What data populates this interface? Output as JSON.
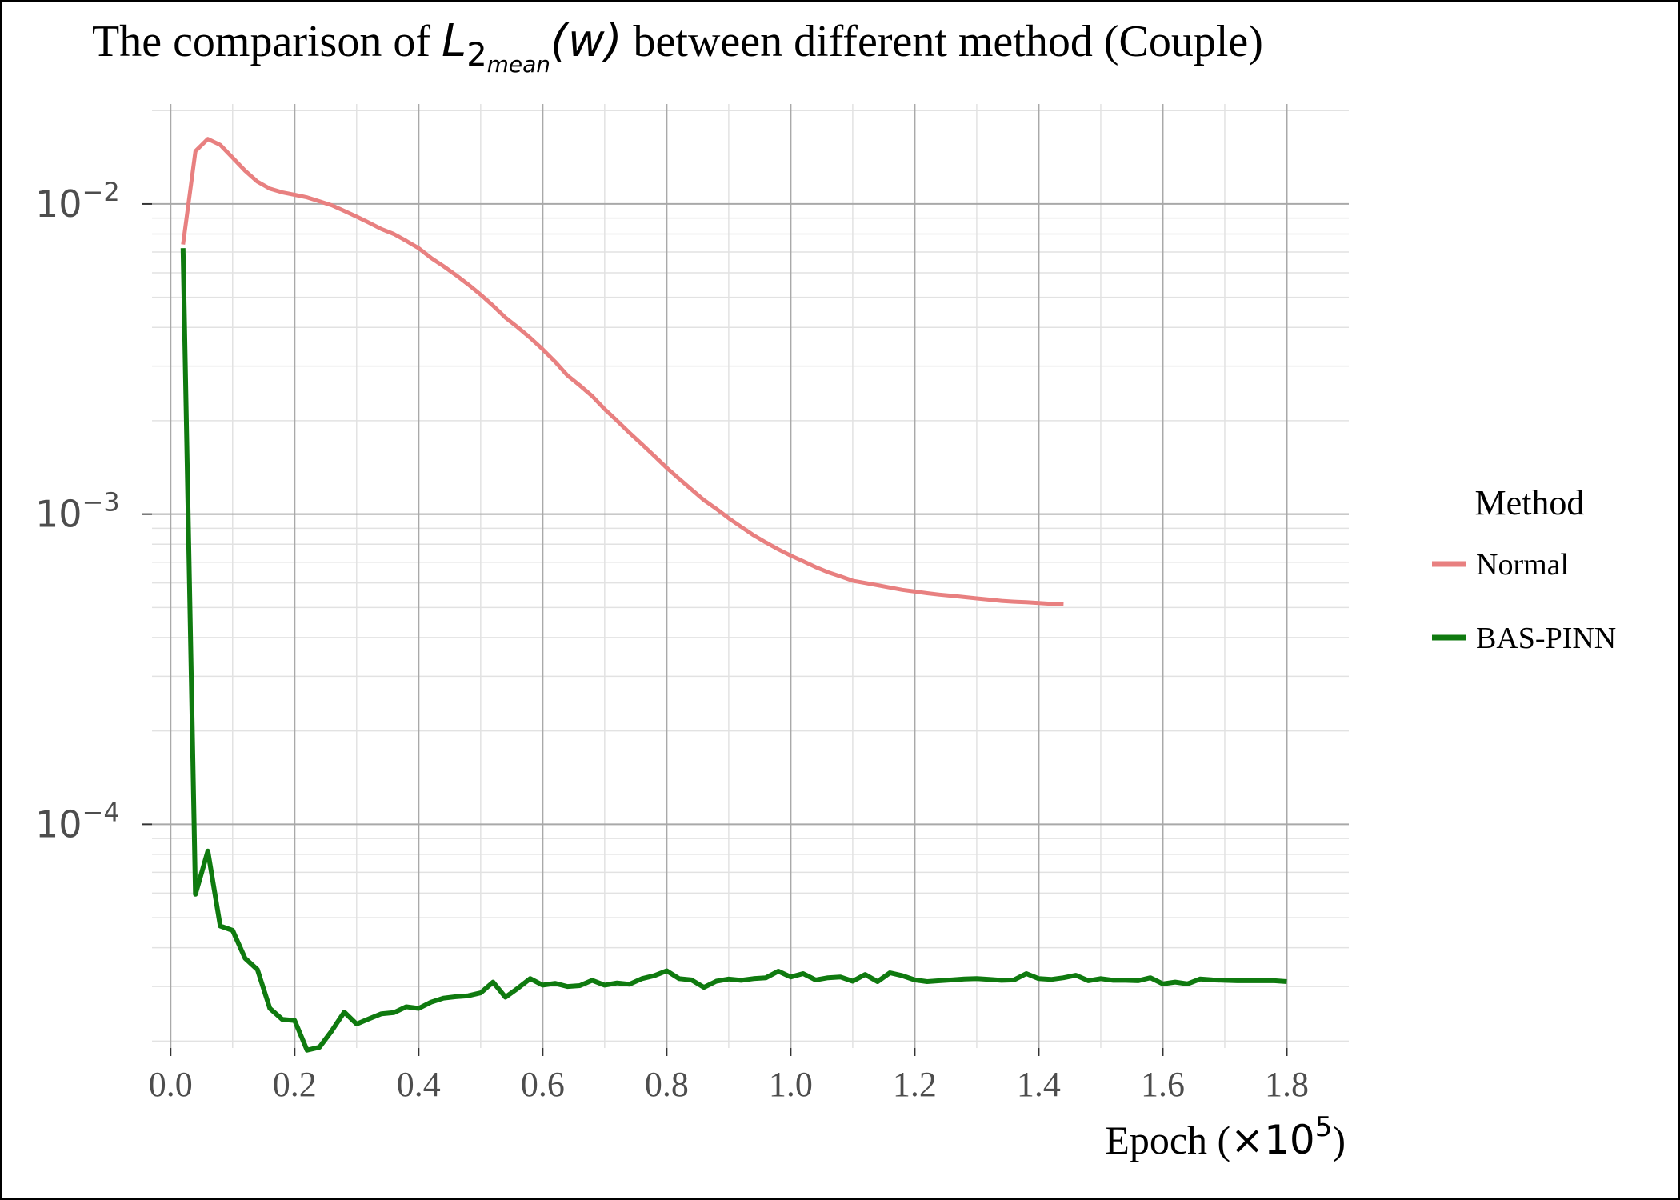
{
  "chart_data": {
    "type": "line",
    "title": {
      "prefix": "The comparison of ",
      "math_base": "L",
      "math_sub": "2",
      "math_subsub": "mean",
      "math_arg": "(w)",
      "suffix": " between different method (Couple)"
    },
    "xlabel": {
      "text": "Epoch (",
      "mult": "×10",
      "exp": "5",
      "close": ")"
    },
    "ylabel": "",
    "x_scale": "linear",
    "y_scale": "log",
    "xlim": [
      -0.03,
      1.9
    ],
    "ylim": [
      1.9e-05,
      0.021
    ],
    "x_ticks": [
      0.0,
      0.2,
      0.4,
      0.6,
      0.8,
      1.0,
      1.2,
      1.4,
      1.6,
      1.8
    ],
    "x_tick_labels": [
      "0.0",
      "0.2",
      "0.4",
      "0.6",
      "0.8",
      "1.0",
      "1.2",
      "1.4",
      "1.6",
      "1.8"
    ],
    "y_ticks": [
      {
        "value": 0.01,
        "base": "10",
        "exp": "−2"
      },
      {
        "value": 0.001,
        "base": "10",
        "exp": "−3"
      },
      {
        "value": 0.0001,
        "base": "10",
        "exp": "−4"
      }
    ],
    "grid": true,
    "legend": {
      "title": "Method",
      "position": "right"
    },
    "series": [
      {
        "name": "Normal",
        "color": "#e88080",
        "x": [
          0.02,
          0.04,
          0.06,
          0.08,
          0.1,
          0.12,
          0.14,
          0.16,
          0.18,
          0.2,
          0.22,
          0.24,
          0.26,
          0.28,
          0.3,
          0.32,
          0.34,
          0.36,
          0.38,
          0.4,
          0.42,
          0.44,
          0.46,
          0.48,
          0.5,
          0.52,
          0.54,
          0.56,
          0.58,
          0.6,
          0.62,
          0.64,
          0.66,
          0.68,
          0.7,
          0.72,
          0.74,
          0.76,
          0.78,
          0.8,
          0.82,
          0.84,
          0.86,
          0.88,
          0.9,
          0.92,
          0.94,
          0.96,
          0.98,
          1.0,
          1.02,
          1.04,
          1.06,
          1.08,
          1.1,
          1.12,
          1.14,
          1.16,
          1.18,
          1.2,
          1.22,
          1.24,
          1.26,
          1.28,
          1.3,
          1.32,
          1.34,
          1.36,
          1.38,
          1.4,
          1.42,
          1.44
        ],
        "y": [
          0.0074,
          0.0148,
          0.0162,
          0.0155,
          0.0141,
          0.0128,
          0.0118,
          0.0112,
          0.0109,
          0.0107,
          0.0105,
          0.0102,
          0.0099,
          0.0095,
          0.0091,
          0.0087,
          0.0083,
          0.008,
          0.0076,
          0.0072,
          0.0067,
          0.0063,
          0.0059,
          0.0055,
          0.0051,
          0.0047,
          0.0043,
          0.004,
          0.0037,
          0.0034,
          0.0031,
          0.0028,
          0.0026,
          0.0024,
          0.00218,
          0.002,
          0.00183,
          0.00168,
          0.00154,
          0.00141,
          0.0013,
          0.0012,
          0.00111,
          0.00104,
          0.00097,
          0.00091,
          0.000855,
          0.00081,
          0.00077,
          0.000735,
          0.000705,
          0.000675,
          0.00065,
          0.00063,
          0.00061,
          0.0006,
          0.00059,
          0.00058,
          0.00057,
          0.000563,
          0.000556,
          0.00055,
          0.000545,
          0.00054,
          0.000535,
          0.00053,
          0.000525,
          0.000522,
          0.00052,
          0.000517,
          0.000514,
          0.000512
        ]
      },
      {
        "name": "BAS-PINN",
        "color": "#0f7a0f",
        "x": [
          0.02,
          0.04,
          0.06,
          0.08,
          0.1,
          0.12,
          0.14,
          0.16,
          0.18,
          0.2,
          0.22,
          0.24,
          0.26,
          0.28,
          0.3,
          0.32,
          0.34,
          0.36,
          0.38,
          0.4,
          0.42,
          0.44,
          0.46,
          0.48,
          0.5,
          0.52,
          0.54,
          0.56,
          0.58,
          0.6,
          0.62,
          0.64,
          0.66,
          0.68,
          0.7,
          0.72,
          0.74,
          0.76,
          0.78,
          0.8,
          0.82,
          0.84,
          0.86,
          0.88,
          0.9,
          0.92,
          0.94,
          0.96,
          0.98,
          1.0,
          1.02,
          1.04,
          1.06,
          1.08,
          1.1,
          1.12,
          1.14,
          1.16,
          1.18,
          1.2,
          1.22,
          1.24,
          1.26,
          1.28,
          1.3,
          1.32,
          1.34,
          1.36,
          1.38,
          1.4,
          1.42,
          1.44,
          1.46,
          1.48,
          1.5,
          1.52,
          1.54,
          1.56,
          1.58,
          1.6,
          1.62,
          1.64,
          1.66,
          1.68,
          1.7,
          1.72,
          1.74,
          1.76,
          1.78,
          1.8
        ],
        "y": [
          0.0072,
          5.95e-05,
          8.2e-05,
          4.7e-05,
          4.55e-05,
          3.7e-05,
          3.4e-05,
          2.55e-05,
          2.35e-05,
          2.33e-05,
          1.87e-05,
          1.91e-05,
          2.16e-05,
          2.48e-05,
          2.27e-05,
          2.36e-05,
          2.45e-05,
          2.47e-05,
          2.58e-05,
          2.55e-05,
          2.67e-05,
          2.75e-05,
          2.78e-05,
          2.8e-05,
          2.86e-05,
          3.1e-05,
          2.77e-05,
          2.96e-05,
          3.18e-05,
          3.03e-05,
          3.07e-05,
          3e-05,
          3.02e-05,
          3.14e-05,
          3.03e-05,
          3.08e-05,
          3.05e-05,
          3.18e-05,
          3.25e-05,
          3.37e-05,
          3.18e-05,
          3.15e-05,
          2.98e-05,
          3.12e-05,
          3.17e-05,
          3.14e-05,
          3.18e-05,
          3.2e-05,
          3.36e-05,
          3.22e-05,
          3.3e-05,
          3.15e-05,
          3.2e-05,
          3.22e-05,
          3.12e-05,
          3.28e-05,
          3.11e-05,
          3.32e-05,
          3.25e-05,
          3.15e-05,
          3.11e-05,
          3.13e-05,
          3.15e-05,
          3.17e-05,
          3.18e-05,
          3.16e-05,
          3.14e-05,
          3.15e-05,
          3.3e-05,
          3.18e-05,
          3.16e-05,
          3.2e-05,
          3.26e-05,
          3.13e-05,
          3.18e-05,
          3.14e-05,
          3.14e-05,
          3.13e-05,
          3.2e-05,
          3.06e-05,
          3.1e-05,
          3.06e-05,
          3.17e-05,
          3.15e-05,
          3.14e-05,
          3.13e-05,
          3.13e-05,
          3.13e-05,
          3.13e-05,
          3.11e-05
        ]
      }
    ]
  }
}
